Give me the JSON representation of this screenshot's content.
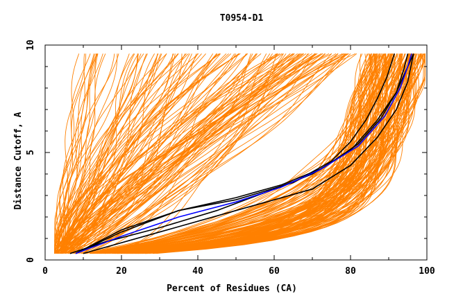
{
  "chart_data": {
    "type": "line",
    "title": "T0954-D1",
    "xlabel": "Percent of Residues (CA)",
    "ylabel": "Distance Cutoff, A",
    "xlim": [
      0,
      100
    ],
    "ylim": [
      0,
      10
    ],
    "x_ticks": [
      "0",
      "20",
      "40",
      "60",
      "80",
      "100"
    ],
    "y_ticks": [
      "0",
      "5",
      "10"
    ],
    "grid": false,
    "legend": "none",
    "colors": {
      "orange": "#ff8000",
      "black": "#000000",
      "blue": "#0000ff"
    },
    "series": [
      {
        "color": "black",
        "x": [
          6.5,
          15,
          30,
          45,
          60,
          70,
          80,
          87,
          92,
          95,
          96.5
        ],
        "y": [
          0.3,
          0.8,
          1.5,
          2.3,
          3.3,
          4.0,
          5.1,
          6.5,
          7.8,
          9.0,
          9.6
        ]
      },
      {
        "color": "black",
        "x": [
          8,
          20,
          35,
          50,
          62,
          73,
          82,
          88,
          92,
          94,
          95
        ],
        "y": [
          0.3,
          1.3,
          2.3,
          2.9,
          3.5,
          4.3,
          5.4,
          6.6,
          7.8,
          8.9,
          9.6
        ]
      },
      {
        "color": "black",
        "x": [
          8,
          20,
          35,
          50,
          65,
          75,
          80,
          84,
          87,
          89.5,
          91.5
        ],
        "y": [
          0.3,
          1.4,
          2.3,
          2.8,
          3.6,
          4.6,
          5.5,
          6.5,
          7.5,
          8.5,
          9.6
        ]
      },
      {
        "color": "black",
        "x": [
          10,
          30,
          50,
          70,
          80,
          87,
          92,
          95,
          96.5
        ],
        "y": [
          0.3,
          1.3,
          2.3,
          3.3,
          4.4,
          5.7,
          7.0,
          8.3,
          9.6
        ]
      },
      {
        "color": "blue",
        "x": [
          8,
          20,
          35,
          50,
          62,
          72,
          82,
          89,
          93,
          95,
          96
        ],
        "y": [
          0.3,
          1.1,
          2.0,
          2.7,
          3.4,
          4.2,
          5.3,
          6.7,
          8.0,
          9.0,
          9.6
        ]
      }
    ]
  }
}
